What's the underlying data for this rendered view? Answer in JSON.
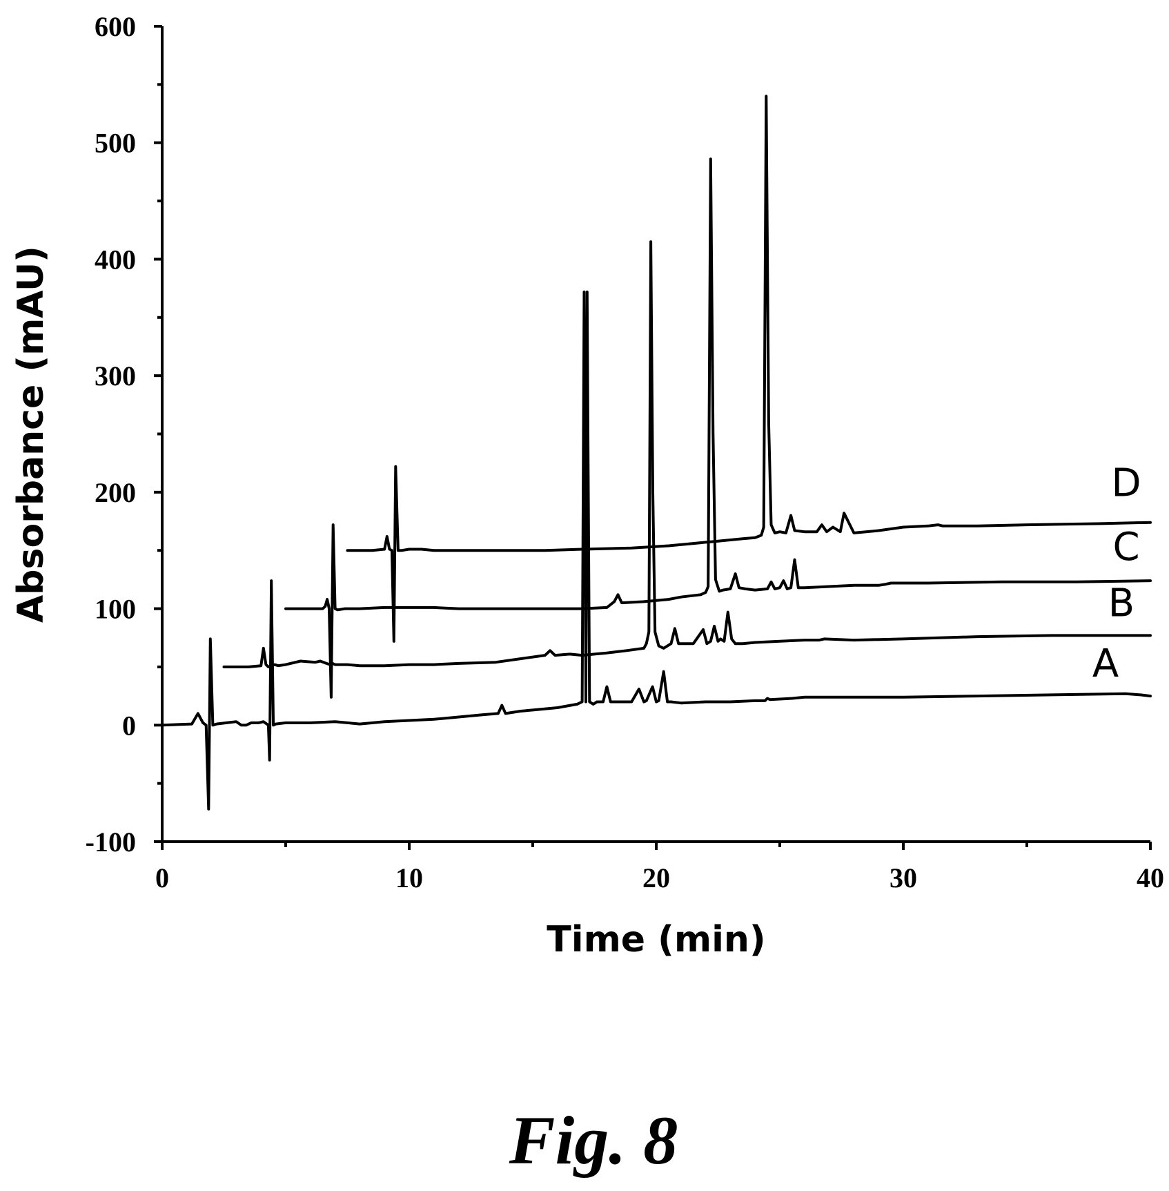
{
  "chart_data": {
    "type": "line",
    "title": "",
    "xlabel": "Time (min)",
    "ylabel": "Absorbance (mAU)",
    "xlim": [
      0,
      40
    ],
    "ylim": [
      -100,
      600
    ],
    "x_ticks": [
      0,
      10,
      20,
      30,
      40
    ],
    "y_ticks": [
      -100,
      0,
      100,
      200,
      300,
      400,
      500,
      600
    ],
    "grid": false,
    "legend": "none",
    "series": [
      {
        "name": "A",
        "x": [
          0,
          1.2,
          1.45,
          1.55,
          1.65,
          1.78,
          1.88,
          1.95,
          2.05,
          2.2,
          2.6,
          3.0,
          3.2,
          3.4,
          3.6,
          3.9,
          4.1,
          4.3,
          4.35,
          4.42,
          4.5,
          4.6,
          5.0,
          6.0,
          7.0,
          8.0,
          9.0,
          10.0,
          11.0,
          12.0,
          13.0,
          13.6,
          13.75,
          13.9,
          14.5,
          15.0,
          16.0,
          16.8,
          17.0,
          17.08,
          17.15,
          17.2,
          17.3,
          17.45,
          17.6,
          17.85,
          18.0,
          18.15,
          18.3,
          19.0,
          19.3,
          19.5,
          19.6,
          19.85,
          20.0,
          20.1,
          20.3,
          20.45,
          20.6,
          21.0,
          22.0,
          23.0,
          24.0,
          24.4,
          24.5,
          24.6,
          25.5,
          26.0,
          28.0,
          30.0,
          33.0,
          36.0,
          39.0,
          39.6,
          40.0
        ],
        "values": [
          0,
          1,
          10,
          6,
          2,
          0,
          -72,
          74,
          0,
          1,
          2,
          3,
          0,
          0,
          2,
          2,
          3,
          0,
          -30,
          124,
          0,
          1,
          2,
          2,
          3,
          1,
          3,
          4,
          5,
          7,
          9,
          10,
          17,
          10,
          12,
          13,
          15,
          18,
          20,
          372,
          20,
          372,
          20,
          18,
          20,
          20,
          33,
          20,
          20,
          20,
          31,
          20,
          21,
          33,
          20,
          21,
          46,
          20,
          20,
          19,
          20,
          20,
          21,
          21,
          23,
          22,
          23,
          24,
          24,
          24,
          25,
          26,
          27,
          26,
          25
        ]
      },
      {
        "name": "B",
        "x": [
          2.5,
          3.5,
          4.0,
          4.1,
          4.2,
          4.3,
          4.45,
          4.55,
          4.7,
          5.0,
          5.6,
          6.2,
          6.4,
          6.65,
          6.8,
          6.9,
          7.0,
          7.5,
          8.0,
          9.0,
          10.0,
          11.0,
          12.0,
          13.5,
          14.5,
          15.5,
          15.7,
          15.9,
          16.5,
          17.0,
          17.5,
          18.0,
          18.8,
          19.5,
          19.6,
          19.7,
          19.78,
          19.86,
          19.95,
          20.1,
          20.3,
          20.6,
          20.75,
          20.9,
          21.5,
          21.9,
          22.05,
          22.2,
          22.35,
          22.5,
          22.6,
          22.75,
          22.9,
          23.05,
          23.2,
          23.5,
          24.0,
          25.0,
          26.0,
          26.6,
          26.8,
          28.0,
          30.0,
          33.0,
          36.0,
          40.0
        ],
        "values": [
          50,
          50,
          51,
          66,
          52,
          50,
          51,
          52,
          51,
          52,
          55,
          54,
          55,
          53,
          52,
          53,
          52,
          52,
          51,
          51,
          52,
          52,
          53,
          54,
          57,
          60,
          64,
          60,
          61,
          60,
          61,
          62,
          64,
          66,
          70,
          80,
          415,
          200,
          80,
          68,
          66,
          70,
          83,
          70,
          70,
          82,
          70,
          72,
          85,
          72,
          74,
          72,
          97,
          74,
          70,
          70,
          71,
          72,
          73,
          73,
          74,
          73,
          74,
          76,
          77,
          77
        ]
      },
      {
        "name": "C",
        "x": [
          5.0,
          6.0,
          6.5,
          6.6,
          6.68,
          6.76,
          6.84,
          6.92,
          7.0,
          7.1,
          7.4,
          8.0,
          9.0,
          10.0,
          11.0,
          12.0,
          14.0,
          16.0,
          17.0,
          18.0,
          18.3,
          18.45,
          18.6,
          19.5,
          20.5,
          21.0,
          21.8,
          22.0,
          22.1,
          22.2,
          22.3,
          22.4,
          22.55,
          22.7,
          23.0,
          23.2,
          23.35,
          23.6,
          24.0,
          24.5,
          24.65,
          24.8,
          25.0,
          25.15,
          25.3,
          25.45,
          25.6,
          25.75,
          26.0,
          27.0,
          28.0,
          29.0,
          29.3,
          29.5,
          31.0,
          34.0,
          37.0,
          40.0
        ],
        "values": [
          100,
          100,
          100,
          102,
          108,
          100,
          24,
          172,
          100,
          99,
          100,
          100,
          101,
          101,
          101,
          100,
          100,
          100,
          100,
          101,
          106,
          112,
          105,
          106,
          108,
          110,
          112,
          114,
          119,
          486,
          250,
          125,
          115,
          116,
          117,
          130,
          118,
          117,
          116,
          117,
          123,
          117,
          118,
          124,
          117,
          118,
          142,
          118,
          118,
          119,
          120,
          120,
          121,
          122,
          122,
          123,
          123,
          124
        ]
      },
      {
        "name": "D",
        "x": [
          7.5,
          8.5,
          9.0,
          9.1,
          9.2,
          9.3,
          9.38,
          9.45,
          9.55,
          9.7,
          10.0,
          10.5,
          11.0,
          12.0,
          14.0,
          15.5,
          17.0,
          19.0,
          20.5,
          21.5,
          22.5,
          23.5,
          24.0,
          24.25,
          24.35,
          24.45,
          24.55,
          24.65,
          24.8,
          25.0,
          25.25,
          25.45,
          25.6,
          26.0,
          26.5,
          26.7,
          26.9,
          27.15,
          27.3,
          27.45,
          27.6,
          28.0,
          29.0,
          30.0,
          31.0,
          31.4,
          31.6,
          33.0,
          35.0,
          38.0,
          40.0
        ],
        "values": [
          150,
          150,
          151,
          162,
          151,
          150,
          72,
          222,
          150,
          150,
          151,
          151,
          150,
          150,
          150,
          150,
          151,
          152,
          154,
          156,
          158,
          160,
          161,
          163,
          170,
          540,
          260,
          172,
          165,
          166,
          165,
          180,
          167,
          166,
          166,
          172,
          166,
          170,
          168,
          166,
          182,
          165,
          167,
          170,
          171,
          172,
          171,
          171,
          172,
          173,
          174
        ]
      }
    ]
  },
  "series_labels": [
    "A",
    "B",
    "C",
    "D"
  ],
  "caption": "Fig. 8",
  "colors": {
    "trace": "#000000",
    "background": "#ffffff"
  }
}
